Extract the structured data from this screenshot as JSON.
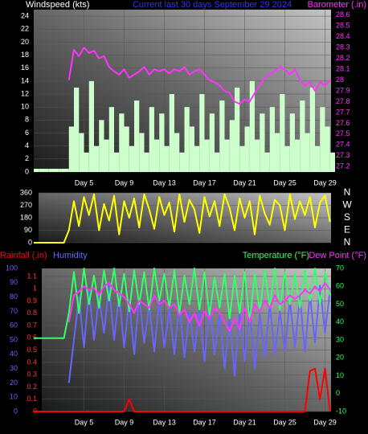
{
  "chart_data": [
    {
      "type": "line",
      "title": "Current last 30 days September 29 2024",
      "y_label": "Windspeed (kts)",
      "y2_label": "Barometer (.in)",
      "x": [
        0,
        0.5,
        1,
        1.5,
        2,
        2.5,
        3,
        3.5,
        4,
        4.5,
        5,
        5.5,
        6,
        6.5,
        7,
        7.5,
        8,
        8.5,
        9,
        9.5,
        10,
        10.5,
        11,
        11.5,
        12,
        12.5,
        13,
        13.5,
        14,
        14.5,
        15,
        15.5,
        16,
        16.5,
        17,
        17.5,
        18,
        18.5,
        19,
        19.5,
        20,
        20.5,
        21,
        21.5,
        22,
        22.5,
        23,
        23.5,
        24,
        24.5,
        25,
        25.5,
        26,
        26.5,
        27,
        27.5,
        28,
        28.5,
        29,
        29.5
      ],
      "xlim": [
        0,
        29.6
      ],
      "xticks": [
        {
          "value": 5,
          "label": "Day 5"
        },
        {
          "value": 9,
          "label": "Day 9"
        },
        {
          "value": 13,
          "label": "Day 13"
        },
        {
          "value": 17,
          "label": "Day 17"
        },
        {
          "value": 21,
          "label": "Day 21"
        },
        {
          "value": 25,
          "label": "Day 25"
        },
        {
          "value": 29,
          "label": "Day 29"
        }
      ],
      "ylim": [
        0,
        25
      ],
      "yticks": [
        0,
        2,
        4,
        6,
        8,
        10,
        12,
        14,
        16,
        18,
        20,
        22,
        24
      ],
      "y2lim": [
        27.15,
        28.65
      ],
      "y2ticks": [
        27.2,
        27.3,
        27.4,
        27.5,
        27.6,
        27.7,
        27.8,
        27.9,
        28,
        28.1,
        28.2,
        28.3,
        28.4,
        28.5,
        28.6
      ],
      "grid": true,
      "series": [
        {
          "kind": "bar",
          "axis": "y",
          "color": "#ccffcc",
          "values": [
            0.5,
            0.5,
            0.5,
            0.5,
            0.5,
            0.5,
            0.5,
            7,
            13,
            6,
            3,
            14,
            4,
            8,
            5,
            10,
            3,
            9,
            7,
            4,
            11,
            6,
            3,
            10,
            5,
            9,
            4,
            12,
            6,
            3,
            10,
            7,
            4,
            12,
            5,
            9,
            3,
            11,
            5,
            8,
            13,
            4,
            7,
            14,
            5,
            9,
            3,
            10,
            6,
            12,
            4,
            9,
            5,
            11,
            6,
            13,
            4,
            10,
            7,
            3
          ]
        },
        {
          "kind": "line",
          "axis": "y2",
          "color": "#ff33ff",
          "values": [
            null,
            null,
            null,
            null,
            null,
            null,
            null,
            28.0,
            28.28,
            28.22,
            28.3,
            28.25,
            28.27,
            28.2,
            28.22,
            28.12,
            28.08,
            28.05,
            28.1,
            28.02,
            28.05,
            28.08,
            28.12,
            28.05,
            28.1,
            28.08,
            28.1,
            28.06,
            28.1,
            28.08,
            28.12,
            28.05,
            28.08,
            28.1,
            28.05,
            28.0,
            27.98,
            27.95,
            27.9,
            27.88,
            27.8,
            27.78,
            27.82,
            27.8,
            27.88,
            27.95,
            28.02,
            28.05,
            28.08,
            28.12,
            28.1,
            28.05,
            28.1,
            28.0,
            27.95,
            27.98,
            27.9,
            27.98,
            27.95,
            28.0
          ]
        }
      ]
    },
    {
      "type": "line",
      "x": [
        0,
        0.5,
        1,
        1.5,
        2,
        2.5,
        3,
        3.5,
        4,
        4.5,
        5,
        5.5,
        6,
        6.5,
        7,
        7.5,
        8,
        8.5,
        9,
        9.5,
        10,
        10.5,
        11,
        11.5,
        12,
        12.5,
        13,
        13.5,
        14,
        14.5,
        15,
        15.5,
        16,
        16.5,
        17,
        17.5,
        18,
        18.5,
        19,
        19.5,
        20,
        20.5,
        21,
        21.5,
        22,
        22.5,
        23,
        23.5,
        24,
        24.5,
        25,
        25.5,
        26,
        26.5,
        27,
        27.5,
        28,
        28.5,
        29,
        29.5
      ],
      "xlim": [
        0,
        29.6
      ],
      "ylim": [
        0,
        360
      ],
      "yticks": [
        0,
        90,
        180,
        270,
        360
      ],
      "y2ticks": [
        {
          "value": 360,
          "label": "N"
        },
        {
          "value": 270,
          "label": "W"
        },
        {
          "value": 180,
          "label": "S"
        },
        {
          "value": 90,
          "label": "E"
        },
        {
          "value": 0,
          "label": "N"
        }
      ],
      "grid": true,
      "series": [
        {
          "kind": "line",
          "axis": "y",
          "color": "#ffff00",
          "values": [
            0,
            0,
            0,
            0,
            0,
            0,
            0,
            90,
            300,
            120,
            330,
            200,
            350,
            90,
            280,
            160,
            340,
            60,
            300,
            180,
            320,
            110,
            350,
            240,
            100,
            330,
            200,
            290,
            80,
            350,
            150,
            310,
            240,
            70,
            330,
            190,
            300,
            120,
            350,
            250,
            90,
            320,
            180,
            300,
            60,
            340,
            210,
            130,
            310,
            270,
            90,
            350,
            170,
            300,
            200,
            330,
            110,
            290,
            340,
            150
          ]
        }
      ]
    },
    {
      "type": "line",
      "x": [
        0,
        0.5,
        1,
        1.5,
        2,
        2.5,
        3,
        3.5,
        4,
        4.5,
        5,
        5.5,
        6,
        6.5,
        7,
        7.5,
        8,
        8.5,
        9,
        9.5,
        10,
        10.5,
        11,
        11.5,
        12,
        12.5,
        13,
        13.5,
        14,
        14.5,
        15,
        15.5,
        16,
        16.5,
        17,
        17.5,
        18,
        18.5,
        19,
        19.5,
        20,
        20.5,
        21,
        21.5,
        22,
        22.5,
        23,
        23.5,
        24,
        24.5,
        25,
        25.5,
        26,
        26.5,
        27,
        27.5,
        28,
        28.5,
        29,
        29.5
      ],
      "xlim": [
        0,
        29.6
      ],
      "xticks": [
        {
          "value": 5,
          "label": "Day 5"
        },
        {
          "value": 9,
          "label": "Day 9"
        },
        {
          "value": 13,
          "label": "Day 13"
        },
        {
          "value": 17,
          "label": "Day 17"
        },
        {
          "value": 21,
          "label": "Day 21"
        },
        {
          "value": 25,
          "label": "Day 25"
        },
        {
          "value": 29,
          "label": "Day 29"
        }
      ],
      "ylim": [
        0,
        1.165
      ],
      "yticks": [
        0,
        0.1,
        0.2,
        0.3,
        0.4,
        0.5,
        0.6,
        0.7,
        0.8,
        0.9,
        1,
        1.1
      ],
      "y3lim": [
        0,
        100
      ],
      "y3ticks": [
        0,
        10,
        20,
        30,
        40,
        50,
        60,
        70,
        80,
        90,
        100
      ],
      "y2lim": [
        -10,
        70
      ],
      "y2ticks": [
        -10,
        0,
        10,
        20,
        30,
        40,
        50,
        60,
        70
      ],
      "grid": true,
      "series": [
        {
          "name": "Rainfall (.in)",
          "kind": "line",
          "axis": "y",
          "color": "#ff0000",
          "values": [
            0,
            0,
            0,
            0,
            0,
            0,
            0,
            0,
            0,
            0,
            0,
            0,
            0,
            0,
            0,
            0,
            0,
            0,
            0,
            0.1,
            0,
            0,
            0,
            0,
            0,
            0,
            0,
            0,
            0,
            0,
            0,
            0,
            0,
            0,
            0,
            0,
            0,
            0,
            0,
            0,
            0,
            0,
            0,
            0,
            0,
            0,
            0,
            0,
            0,
            0,
            0,
            0,
            0,
            0,
            0,
            0.33,
            0.35,
            0.1,
            0.35,
            0
          ]
        },
        {
          "name": "Humidity",
          "kind": "line",
          "axis": "y3",
          "color": "#6666ff",
          "values": [
            null,
            null,
            null,
            null,
            null,
            null,
            null,
            20,
            50,
            80,
            45,
            85,
            50,
            80,
            55,
            88,
            50,
            82,
            45,
            78,
            40,
            80,
            48,
            75,
            42,
            78,
            45,
            72,
            40,
            75,
            38,
            70,
            42,
            72,
            35,
            75,
            40,
            68,
            30,
            65,
            25,
            70,
            35,
            72,
            30,
            68,
            38,
            75,
            40,
            70,
            42,
            78,
            45,
            80,
            42,
            82,
            48,
            88,
            55,
            85
          ]
        },
        {
          "name": "Temperature (°F)",
          "kind": "line",
          "axis": "y2",
          "color": "#33ff66",
          "values": [
            31,
            31,
            31,
            31,
            31,
            31,
            31,
            45,
            68,
            45,
            70,
            50,
            66,
            48,
            69,
            52,
            70,
            49,
            67,
            46,
            69,
            50,
            68,
            47,
            70,
            52,
            67,
            48,
            69,
            45,
            66,
            50,
            70,
            47,
            68,
            44,
            65,
            48,
            67,
            42,
            66,
            45,
            68,
            40,
            67,
            46,
            69,
            48,
            70,
            47,
            68,
            50,
            67,
            48,
            69,
            52,
            70,
            50,
            68,
            55
          ]
        },
        {
          "name": "Dew Point (°F)",
          "kind": "line",
          "axis": "y2",
          "color": "#ff33ff",
          "values": [
            null,
            null,
            null,
            null,
            null,
            null,
            null,
            40,
            55,
            57,
            60,
            58,
            59,
            55,
            60,
            62,
            58,
            56,
            54,
            50,
            45,
            52,
            50,
            48,
            55,
            50,
            52,
            48,
            50,
            44,
            47,
            40,
            45,
            38,
            46,
            42,
            48,
            45,
            40,
            35,
            42,
            36,
            48,
            40,
            50,
            46,
            52,
            48,
            55,
            50,
            52,
            55,
            53,
            55,
            58,
            56,
            60,
            57,
            62,
            58
          ]
        }
      ]
    }
  ]
}
